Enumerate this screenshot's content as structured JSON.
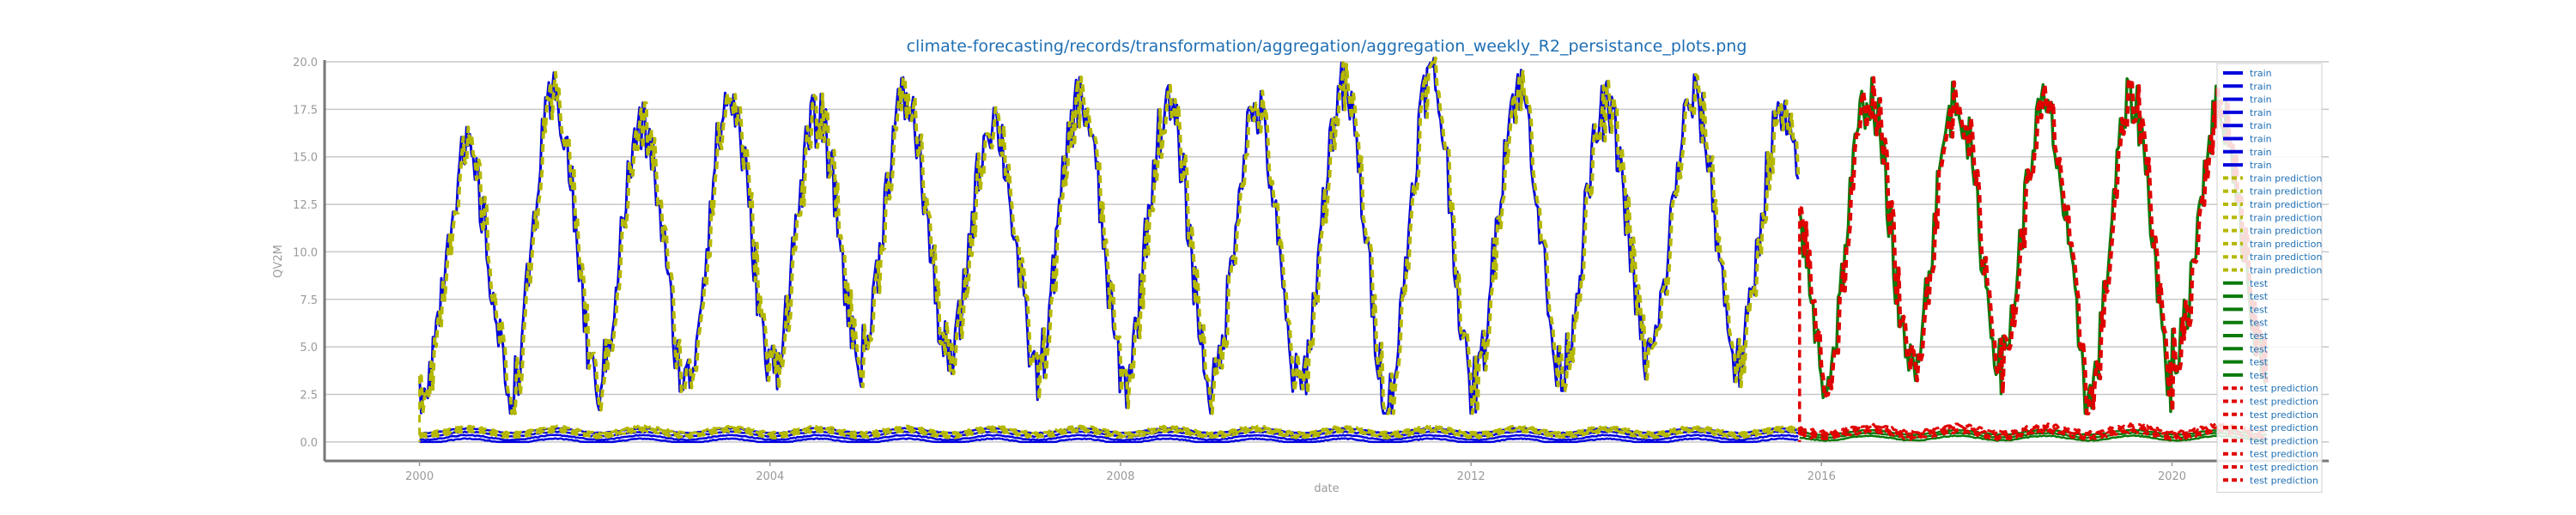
{
  "chart_data": {
    "type": "line",
    "title": "climate-forecasting/records/transformation/aggregation/aggregation_weekly_R2_persistance_plots.png",
    "xlabel": "date",
    "ylabel": "QV2M",
    "xlim": [
      "1998-12-01",
      "2021-10-15"
    ],
    "ylim": [
      -1.0,
      20.0
    ],
    "xticks": [
      "2000",
      "2004",
      "2008",
      "2012",
      "2016",
      "2020"
    ],
    "yticks": [
      "0.0",
      "2.5",
      "5.0",
      "7.5",
      "10.0",
      "12.5",
      "15.0",
      "17.5",
      "20.0"
    ],
    "grid": "horizontal",
    "legend_position": "top-right",
    "colors": {
      "train": "#0000dd",
      "train_prediction": "#b5b800",
      "test": "#0a7a0a",
      "test_prediction": "#e00000"
    },
    "train_range": [
      "2000-01-01",
      "2015-09-30"
    ],
    "test_range": [
      "2015-10-01",
      "2021-01-31"
    ],
    "annual_cycle": {
      "minimum_month": "January",
      "maximum_month": "July",
      "yearly_min": [
        3.0,
        2.5,
        3.0,
        3.0,
        4.0,
        4.5,
        4.0,
        3.5,
        3.0,
        2.7,
        2.8,
        2.0,
        3.0,
        4.0,
        4.5,
        4.0,
        3.0,
        4.5,
        4.0,
        2.0,
        4.5,
        4.5
      ],
      "yearly_max": [
        15.0,
        18.0,
        16.5,
        18.0,
        17.0,
        18.0,
        17.0,
        18.0,
        17.5,
        17.5,
        18.5,
        19.2,
        18.5,
        17.5,
        18.0,
        17.0,
        18.2,
        18.0,
        17.5,
        18.0,
        17.5,
        17.5
      ],
      "near_zero_band": [
        0.0,
        1.0
      ]
    },
    "legend": [
      {
        "label": "train",
        "style": "solid",
        "color": "#0000dd"
      },
      {
        "label": "train",
        "style": "solid",
        "color": "#0000dd"
      },
      {
        "label": "train",
        "style": "solid",
        "color": "#0000dd"
      },
      {
        "label": "train",
        "style": "solid",
        "color": "#0000dd"
      },
      {
        "label": "train",
        "style": "solid",
        "color": "#0000dd"
      },
      {
        "label": "train",
        "style": "solid",
        "color": "#0000dd"
      },
      {
        "label": "train",
        "style": "solid",
        "color": "#0000dd"
      },
      {
        "label": "train",
        "style": "solid",
        "color": "#0000dd"
      },
      {
        "label": "train prediction",
        "style": "dashed",
        "color": "#b5b800"
      },
      {
        "label": "train prediction",
        "style": "dashed",
        "color": "#b5b800"
      },
      {
        "label": "train prediction",
        "style": "dashed",
        "color": "#b5b800"
      },
      {
        "label": "train prediction",
        "style": "dashed",
        "color": "#b5b800"
      },
      {
        "label": "train prediction",
        "style": "dashed",
        "color": "#b5b800"
      },
      {
        "label": "train prediction",
        "style": "dashed",
        "color": "#b5b800"
      },
      {
        "label": "train prediction",
        "style": "dashed",
        "color": "#b5b800"
      },
      {
        "label": "train prediction",
        "style": "dashed",
        "color": "#b5b800"
      },
      {
        "label": "test",
        "style": "solid",
        "color": "#0a7a0a"
      },
      {
        "label": "test",
        "style": "solid",
        "color": "#0a7a0a"
      },
      {
        "label": "test",
        "style": "solid",
        "color": "#0a7a0a"
      },
      {
        "label": "test",
        "style": "solid",
        "color": "#0a7a0a"
      },
      {
        "label": "test",
        "style": "solid",
        "color": "#0a7a0a"
      },
      {
        "label": "test",
        "style": "solid",
        "color": "#0a7a0a"
      },
      {
        "label": "test",
        "style": "solid",
        "color": "#0a7a0a"
      },
      {
        "label": "test",
        "style": "solid",
        "color": "#0a7a0a"
      },
      {
        "label": "test prediction",
        "style": "dashed",
        "color": "#e00000"
      },
      {
        "label": "test prediction",
        "style": "dashed",
        "color": "#e00000"
      },
      {
        "label": "test prediction",
        "style": "dashed",
        "color": "#e00000"
      },
      {
        "label": "test prediction",
        "style": "dashed",
        "color": "#e00000"
      },
      {
        "label": "test prediction",
        "style": "dashed",
        "color": "#e00000"
      },
      {
        "label": "test prediction",
        "style": "dashed",
        "color": "#e00000"
      },
      {
        "label": "test prediction",
        "style": "dashed",
        "color": "#e00000"
      },
      {
        "label": "test prediction",
        "style": "dashed",
        "color": "#e00000"
      }
    ]
  }
}
